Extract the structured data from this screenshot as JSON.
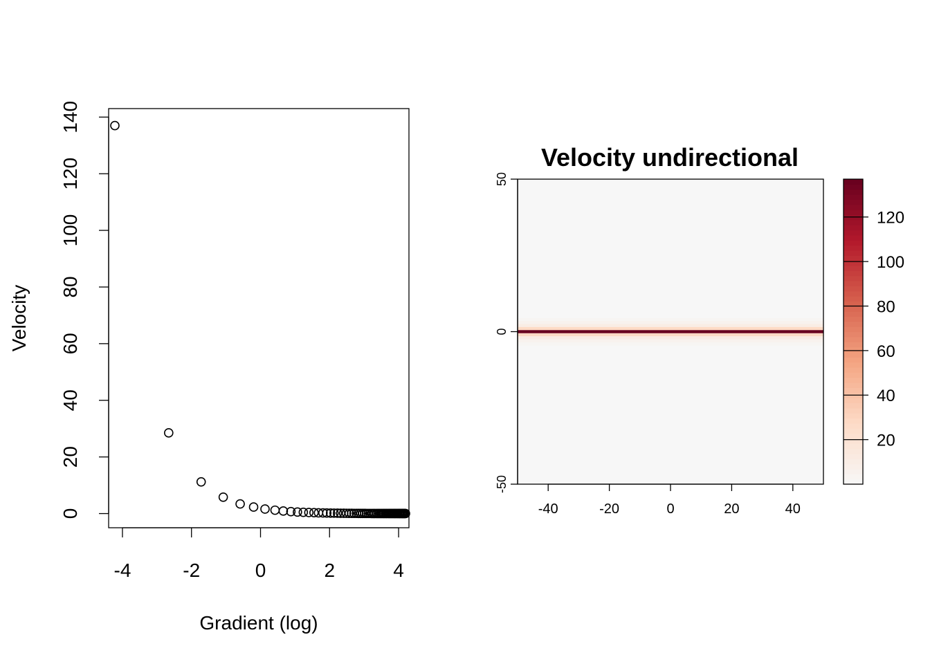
{
  "chart_data": [
    {
      "type": "scatter",
      "title": "",
      "xlabel": "Gradient (log)",
      "ylabel": "Velocity",
      "xlim": [
        -4.4,
        4.3
      ],
      "ylim": [
        -5,
        143
      ],
      "x_ticks": [
        -4,
        -2,
        0,
        2,
        4
      ],
      "y_ticks": [
        0,
        20,
        40,
        60,
        80,
        100,
        120,
        140
      ],
      "x_tick_labels": [
        "-4",
        "-2",
        "0",
        "2",
        "4"
      ],
      "y_tick_labels": [
        "0",
        "20",
        "40",
        "60",
        "80",
        "100",
        "120",
        "140"
      ],
      "grid": false,
      "marker": "open-circle",
      "points": [
        [
          -4.22,
          137
        ],
        [
          -2.66,
          28.5
        ],
        [
          -1.72,
          11.2
        ],
        [
          -1.08,
          5.8
        ],
        [
          -0.59,
          3.4
        ],
        [
          -0.2,
          2.3
        ],
        [
          0.13,
          1.6
        ],
        [
          0.42,
          1.2
        ],
        [
          0.66,
          0.9
        ],
        [
          0.88,
          0.7
        ],
        [
          1.07,
          0.55
        ],
        [
          1.24,
          0.45
        ],
        [
          1.4,
          0.38
        ],
        [
          1.55,
          0.32
        ],
        [
          1.68,
          0.27
        ],
        [
          1.81,
          0.23
        ],
        [
          1.92,
          0.2
        ],
        [
          2.03,
          0.18
        ],
        [
          2.13,
          0.16
        ],
        [
          2.23,
          0.14
        ],
        [
          2.32,
          0.12
        ],
        [
          2.41,
          0.11
        ],
        [
          2.49,
          0.1
        ],
        [
          2.57,
          0.09
        ],
        [
          2.64,
          0.08
        ],
        [
          2.71,
          0.07
        ],
        [
          2.78,
          0.07
        ],
        [
          2.84,
          0.06
        ],
        [
          2.9,
          0.06
        ],
        [
          2.96,
          0.05
        ],
        [
          3.02,
          0.05
        ],
        [
          3.07,
          0.04
        ],
        [
          3.12,
          0.04
        ],
        [
          3.17,
          0.04
        ],
        [
          3.22,
          0.03
        ],
        [
          3.27,
          0.03
        ],
        [
          3.31,
          0.03
        ],
        [
          3.36,
          0.03
        ],
        [
          3.4,
          0.02
        ],
        [
          3.44,
          0.02
        ],
        [
          3.48,
          0.02
        ],
        [
          3.52,
          0.02
        ],
        [
          3.56,
          0.02
        ],
        [
          3.59,
          0.02
        ],
        [
          3.63,
          0.02
        ],
        [
          3.66,
          0.01
        ],
        [
          3.7,
          0.01
        ],
        [
          3.73,
          0.01
        ],
        [
          3.76,
          0.01
        ],
        [
          3.79,
          0.01
        ],
        [
          3.82,
          0.01
        ],
        [
          3.85,
          0.01
        ],
        [
          3.88,
          0.01
        ],
        [
          3.9,
          0.01
        ],
        [
          3.93,
          0.01
        ],
        [
          3.96,
          0.01
        ],
        [
          3.98,
          0.01
        ],
        [
          4.01,
          0.01
        ],
        [
          4.03,
          0.01
        ],
        [
          4.05,
          0.01
        ],
        [
          4.08,
          0.01
        ],
        [
          4.1,
          0.01
        ],
        [
          4.12,
          0.01
        ],
        [
          4.14,
          0.01
        ],
        [
          4.16,
          0.01
        ],
        [
          4.18,
          0.01
        ],
        [
          4.2,
          0.01
        ]
      ]
    },
    {
      "type": "heatmap",
      "title": "Velocity undirectional",
      "xlabel": "",
      "ylabel": "",
      "xlim": [
        -50,
        50
      ],
      "ylim": [
        -50,
        50
      ],
      "x_ticks": [
        -40,
        -20,
        0,
        20,
        40
      ],
      "y_ticks": [
        -50,
        0,
        50
      ],
      "x_tick_labels": [
        "-40",
        "-20",
        "0",
        "20",
        "40"
      ],
      "y_tick_labels": [
        "-50",
        "0",
        "50"
      ],
      "background_value": 0.5,
      "row_profile": [
        {
          "y": 4,
          "value": 2
        },
        {
          "y": 3,
          "value": 5
        },
        {
          "y": 2,
          "value": 10
        },
        {
          "y": 1,
          "value": 28
        },
        {
          "y": 0,
          "value": 137
        },
        {
          "y": -1,
          "value": 28
        },
        {
          "y": -2,
          "value": 10
        },
        {
          "y": -3,
          "value": 5
        },
        {
          "y": -4,
          "value": 2
        }
      ],
      "colorbar": {
        "range": [
          0,
          137
        ],
        "ticks": [
          20,
          40,
          60,
          80,
          100,
          120
        ],
        "tick_labels": [
          "20",
          "40",
          "60",
          "80",
          "100",
          "120"
        ],
        "palette": [
          "#F7F7F7",
          "#FDDBC7",
          "#F4A582",
          "#D6604D",
          "#B2182B",
          "#67001F"
        ]
      }
    }
  ]
}
